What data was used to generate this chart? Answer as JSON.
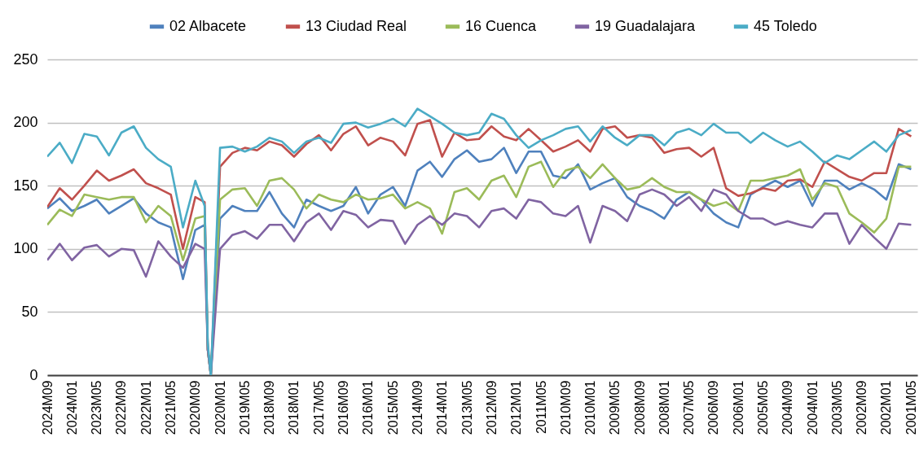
{
  "chart_data": {
    "type": "line",
    "x": [
      "2024-09",
      "2024-05",
      "2024-01",
      "2023-09",
      "2023-05",
      "2023-01",
      "2022-09",
      "2022-05",
      "2022-01",
      "2021-09",
      "2021-05",
      "2021-01",
      "2020-09",
      "2020-06",
      "2020-05",
      "2020-04",
      "2020-01",
      "2019-09",
      "2019-05",
      "2019-01",
      "2018-09",
      "2018-05",
      "2018-01",
      "2017-09",
      "2017-05",
      "2017-01",
      "2016-09",
      "2016-05",
      "2016-01",
      "2015-09",
      "2015-05",
      "2015-01",
      "2014-09",
      "2014-05",
      "2014-01",
      "2013-09",
      "2013-05",
      "2013-01",
      "2012-09",
      "2012-05",
      "2012-01",
      "2011-09",
      "2011-05",
      "2011-01",
      "2010-09",
      "2010-05",
      "2010-01",
      "2009-09",
      "2009-05",
      "2009-01",
      "2008-09",
      "2008-05",
      "2008-01",
      "2007-09",
      "2007-05",
      "2007-01",
      "2006-09",
      "2006-05",
      "2006-01",
      "2005-09",
      "2005-05",
      "2005-01",
      "2004-09",
      "2004-05",
      "2004-01",
      "2003-09",
      "2003-05",
      "2003-01",
      "2002-09",
      "2002-05",
      "2002-01",
      "2001-09",
      "2001-05"
    ],
    "series": [
      {
        "name": "02 Albacete",
        "color": "#4f81bd",
        "values": [
          132,
          140,
          130,
          134,
          139,
          128,
          134,
          140,
          128,
          121,
          117,
          76,
          115,
          119,
          20,
          0,
          124,
          134,
          130,
          130,
          145,
          128,
          117,
          139,
          134,
          130,
          134,
          149,
          128,
          143,
          149,
          134,
          162,
          169,
          157,
          171,
          178,
          169,
          171,
          180,
          160,
          177,
          177,
          158,
          156,
          167,
          147,
          152,
          156,
          141,
          134,
          130,
          124,
          139,
          145,
          139,
          128,
          121,
          117,
          143,
          149,
          154,
          149,
          154,
          134,
          154,
          154,
          147,
          152,
          147,
          139,
          167,
          163
        ]
      },
      {
        "name": "13 Ciudad Real",
        "color": "#c0504d",
        "values": [
          133,
          148,
          139,
          150,
          162,
          154,
          158,
          163,
          152,
          148,
          143,
          100,
          141,
          137,
          20,
          0,
          165,
          176,
          180,
          178,
          185,
          182,
          173,
          183,
          190,
          178,
          191,
          197,
          182,
          188,
          185,
          174,
          199,
          202,
          173,
          192,
          186,
          187,
          197,
          189,
          186,
          195,
          186,
          177,
          181,
          186,
          177,
          195,
          197,
          188,
          190,
          188,
          176,
          179,
          180,
          173,
          180,
          148,
          142,
          144,
          148,
          146,
          154,
          155,
          149,
          169,
          163,
          157,
          154,
          160,
          160,
          195,
          189
        ]
      },
      {
        "name": "16 Cuenca",
        "color": "#9bbb59",
        "values": [
          119,
          131,
          126,
          143,
          141,
          139,
          141,
          141,
          121,
          134,
          126,
          91,
          124,
          126,
          20,
          0,
          139,
          147,
          148,
          134,
          154,
          156,
          147,
          132,
          143,
          139,
          137,
          143,
          139,
          140,
          143,
          132,
          137,
          132,
          112,
          145,
          148,
          139,
          154,
          158,
          141,
          165,
          169,
          149,
          162,
          165,
          156,
          167,
          156,
          147,
          149,
          156,
          149,
          145,
          145,
          139,
          134,
          137,
          130,
          154,
          154,
          156,
          158,
          163,
          139,
          152,
          149,
          128,
          121,
          113,
          124,
          165,
          165
        ]
      },
      {
        "name": "19 Guadalajara",
        "color": "#8064a2",
        "values": [
          91,
          104,
          91,
          101,
          103,
          94,
          100,
          99,
          78,
          106,
          94,
          85,
          104,
          100,
          20,
          0,
          100,
          111,
          114,
          108,
          119,
          119,
          106,
          121,
          128,
          115,
          130,
          127,
          117,
          123,
          122,
          104,
          119,
          126,
          119,
          128,
          126,
          117,
          130,
          132,
          124,
          139,
          137,
          128,
          126,
          134,
          105,
          134,
          130,
          122,
          143,
          147,
          143,
          134,
          141,
          130,
          147,
          143,
          130,
          124,
          124,
          119,
          122,
          119,
          117,
          128,
          128,
          104,
          119,
          109,
          100,
          120,
          119
        ]
      },
      {
        "name": "45 Toledo",
        "color": "#4bacc6",
        "values": [
          173,
          184,
          168,
          191,
          189,
          174,
          192,
          197,
          180,
          171,
          165,
          117,
          154,
          134,
          25,
          0,
          180,
          181,
          177,
          181,
          188,
          185,
          176,
          185,
          188,
          184,
          199,
          200,
          196,
          199,
          203,
          197,
          211,
          205,
          199,
          192,
          190,
          192,
          207,
          203,
          190,
          180,
          186,
          190,
          195,
          197,
          185,
          197,
          188,
          182,
          190,
          190,
          182,
          192,
          195,
          190,
          199,
          192,
          192,
          184,
          192,
          186,
          181,
          185,
          177,
          168,
          174,
          171,
          178,
          185,
          177,
          190,
          194
        ]
      }
    ],
    "xlim": [
      "2024-09",
      "2001-03"
    ],
    "xticks": [
      {
        "value": "2024-09",
        "label": "2024M09"
      },
      {
        "value": "2024-01",
        "label": "2024M01"
      },
      {
        "value": "2023-05",
        "label": "2023M05"
      },
      {
        "value": "2022-09",
        "label": "2022M09"
      },
      {
        "value": "2022-01",
        "label": "2022M01"
      },
      {
        "value": "2021-05",
        "label": "2021M05"
      },
      {
        "value": "2020-09",
        "label": "2020M09"
      },
      {
        "value": "2020-01",
        "label": "2020M01"
      },
      {
        "value": "2019-05",
        "label": "2019M05"
      },
      {
        "value": "2018-09",
        "label": "2018M09"
      },
      {
        "value": "2018-01",
        "label": "2018M01"
      },
      {
        "value": "2017-05",
        "label": "2017M05"
      },
      {
        "value": "2016-09",
        "label": "2016M09"
      },
      {
        "value": "2016-01",
        "label": "2016M01"
      },
      {
        "value": "2015-05",
        "label": "2015M05"
      },
      {
        "value": "2014-09",
        "label": "2014M09"
      },
      {
        "value": "2014-01",
        "label": "2014M01"
      },
      {
        "value": "2013-05",
        "label": "2013M05"
      },
      {
        "value": "2012-09",
        "label": "2012M09"
      },
      {
        "value": "2012-01",
        "label": "2012M01"
      },
      {
        "value": "2011-05",
        "label": "2011M05"
      },
      {
        "value": "2010-09",
        "label": "2010M09"
      },
      {
        "value": "2010-01",
        "label": "2010M01"
      },
      {
        "value": "2009-05",
        "label": "2009M05"
      },
      {
        "value": "2008-09",
        "label": "2008M09"
      },
      {
        "value": "2008-01",
        "label": "2008M01"
      },
      {
        "value": "2007-05",
        "label": "2007M05"
      },
      {
        "value": "2006-09",
        "label": "2006M09"
      },
      {
        "value": "2006-01",
        "label": "2006M01"
      },
      {
        "value": "2005-05",
        "label": "2005M05"
      },
      {
        "value": "2004-09",
        "label": "2004M09"
      },
      {
        "value": "2004-01",
        "label": "2004M01"
      },
      {
        "value": "2003-05",
        "label": "2003M05"
      },
      {
        "value": "2002-09",
        "label": "2002M09"
      },
      {
        "value": "2002-01",
        "label": "2002M01"
      },
      {
        "value": "2001-05",
        "label": "2001M05"
      }
    ],
    "ylim": [
      0,
      250
    ],
    "yticks": [
      0,
      50,
      100,
      150,
      200,
      250
    ],
    "grid": "y",
    "legend": "top",
    "line_style": "solid"
  }
}
